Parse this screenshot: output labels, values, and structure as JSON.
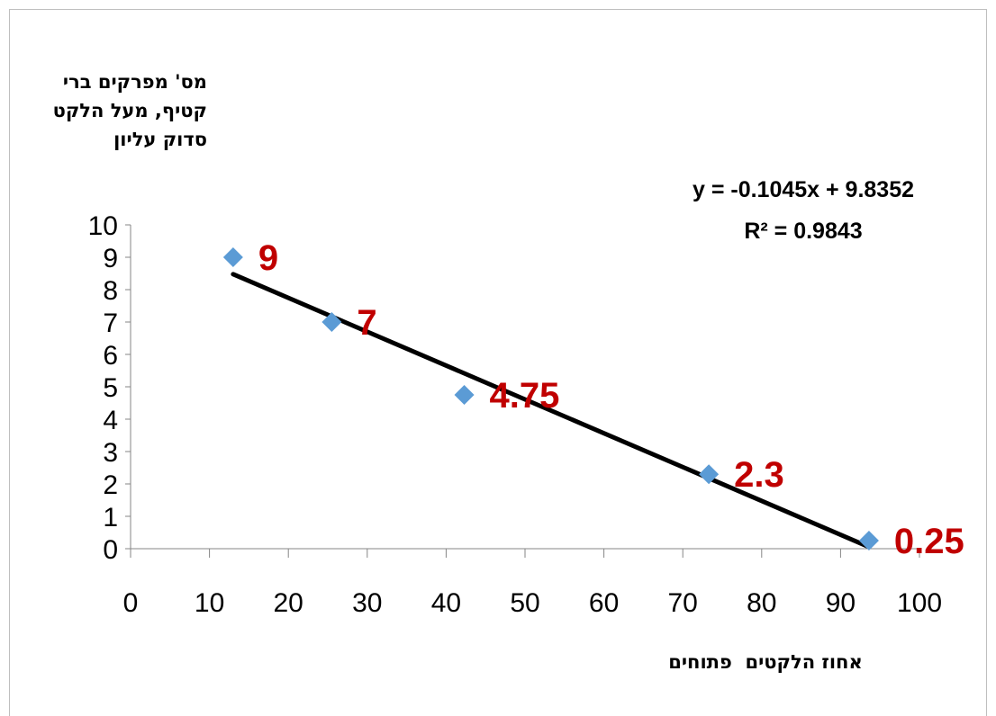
{
  "chart_data": {
    "type": "scatter",
    "ylabel": "מס' מפרקים ברי קטיף, מעל הלקט סדוק עליון",
    "xlabel": "אחוז הלקטים  פתוחים",
    "xlim": [
      0,
      100
    ],
    "ylim": [
      0,
      10
    ],
    "xticks": [
      "0",
      "10",
      "20",
      "30",
      "40",
      "50",
      "60",
      "70",
      "80",
      "90",
      "100"
    ],
    "yticks": [
      "0",
      "1",
      "2",
      "3",
      "4",
      "5",
      "6",
      "7",
      "8",
      "9",
      "10"
    ],
    "points": [
      {
        "x": 13,
        "y": 9,
        "label": "9"
      },
      {
        "x": 25.5,
        "y": 7,
        "label": "7"
      },
      {
        "x": 42.3,
        "y": 4.75,
        "label": "4.75"
      },
      {
        "x": 73.3,
        "y": 2.3,
        "label": "2.3"
      },
      {
        "x": 93.6,
        "y": 0.25,
        "label": "0.25"
      }
    ],
    "trendline": {
      "type": "linear",
      "slope": -0.1045,
      "intercept": 9.8352,
      "x_range": [
        13,
        93.6
      ]
    },
    "equation": "y = -0.1045x + 9.8352",
    "r_squared": "R² = 0.9843",
    "colors": {
      "marker": "#5b9bd5",
      "trendline": "#000000",
      "data_label": "#c00000"
    },
    "grid": false,
    "legend": "none"
  }
}
